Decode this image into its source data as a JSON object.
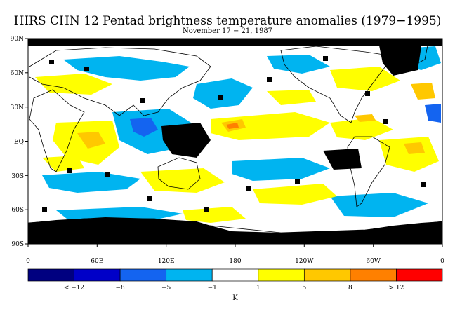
{
  "title": "HIRS CHN 12 Pentad brightness temperature anomalies (1979−1995)",
  "subtitle": "November 17 − 21, 1987",
  "map": {
    "projection": "cylindrical-equidistant",
    "lon_range": [
      0,
      360
    ],
    "lat_range": [
      -90,
      90
    ],
    "lat_ticks": [
      "90N",
      "60N",
      "30N",
      "EQ",
      "30S",
      "60S",
      "90S"
    ],
    "lon_ticks": [
      "0",
      "60E",
      "120E",
      "180",
      "120W",
      "60W",
      "0"
    ]
  },
  "legend": {
    "colors": [
      "#000080",
      "#0000c8",
      "#1464f0",
      "#00b4f0",
      "#ffffff",
      "#ffff00",
      "#ffc800",
      "#ff8000",
      "#ff0000"
    ],
    "labels": [
      "< −12",
      "−8",
      "−5",
      "−1",
      "1",
      "5",
      "8",
      "> 12"
    ],
    "unit": "K"
  }
}
